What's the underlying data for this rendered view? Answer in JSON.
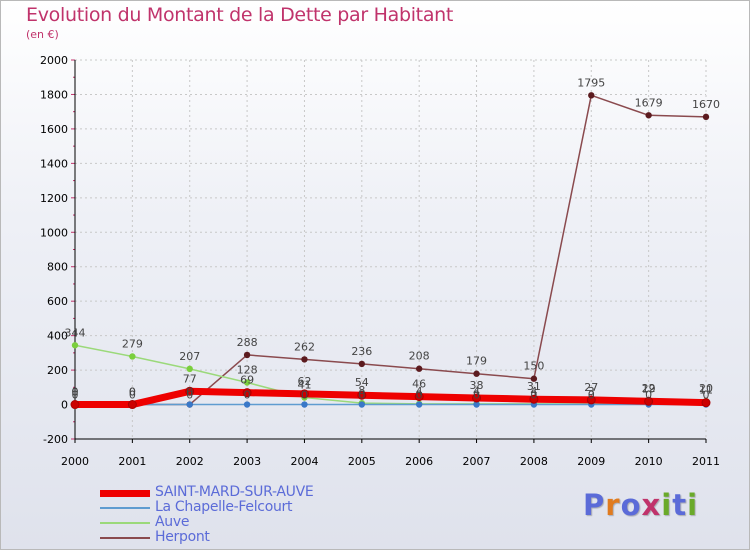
{
  "header": {
    "title": "Evolution du Montant de la Dette par Habitant",
    "subtitle": "(en €)"
  },
  "logo": {
    "text": "Proxiti",
    "letter_colors": [
      "#5b6bd8",
      "#e07b1f",
      "#5b6bd8",
      "#c0336b",
      "#6aaa2a",
      "#5b6bd8",
      "#6aaa2a"
    ]
  },
  "colors": {
    "title": "#c0336b",
    "legend_text": "#5b6bd8",
    "axis": "#000000",
    "grid": "#c8c8c8",
    "label": "#444444"
  },
  "chart_data": {
    "type": "line",
    "title": "Evolution du Montant de la Dette par Habitant",
    "subtitle": "(en €)",
    "xlabel": "",
    "ylabel": "",
    "categories": [
      "2000",
      "2001",
      "2002",
      "2003",
      "2004",
      "2005",
      "2006",
      "2007",
      "2008",
      "2009",
      "2010",
      "2011"
    ],
    "ylim": [
      -200,
      2000
    ],
    "yticks": [
      "-200",
      "0",
      "200",
      "400",
      "600",
      "800",
      "1000",
      "1200",
      "1400",
      "1600",
      "1800",
      "2000"
    ],
    "grid": true,
    "legend_position": "bottom-left",
    "series": [
      {
        "name": "SAINT-MARD-SUR-AUVE",
        "color": "#ee0000",
        "marker_color": "#cc0000",
        "values": [
          0,
          0,
          77,
          69,
          62,
          54,
          46,
          38,
          31,
          27,
          19,
          11
        ],
        "labels": [
          "0",
          "0",
          "77",
          "69",
          "62",
          "54",
          "46",
          "38",
          "31",
          "27",
          "19",
          "11"
        ]
      },
      {
        "name": "La Chapelle-Felcourt",
        "color": "#5f9cd0",
        "marker_color": "#3a78c8",
        "values": [
          0,
          0,
          0,
          0,
          0,
          0,
          0,
          0,
          0,
          0,
          0,
          0
        ],
        "labels": [
          "0",
          "0",
          "0",
          "0",
          "0",
          "0",
          "0",
          "0",
          "0",
          "0",
          "0",
          "0"
        ]
      },
      {
        "name": "Auve",
        "color": "#9bd97a",
        "marker_color": "#7bcf3d",
        "values": [
          344,
          279,
          207,
          128,
          41,
          8,
          4,
          4,
          4,
          3,
          22,
          20
        ],
        "labels": [
          "344",
          "279",
          "207",
          "128",
          "41",
          "8",
          "4",
          "4",
          "4",
          "3",
          "22",
          "20"
        ]
      },
      {
        "name": "Herpont",
        "color": "#8a4a4e",
        "marker_color": "#5c1b1f",
        "values": [
          0,
          0,
          0,
          288,
          262,
          236,
          208,
          179,
          150,
          1795,
          1679,
          1670
        ],
        "labels": [
          "0",
          "0",
          "0",
          "288",
          "262",
          "236",
          "208",
          "179",
          "150",
          "1795",
          "1679",
          "1670"
        ]
      }
    ]
  }
}
